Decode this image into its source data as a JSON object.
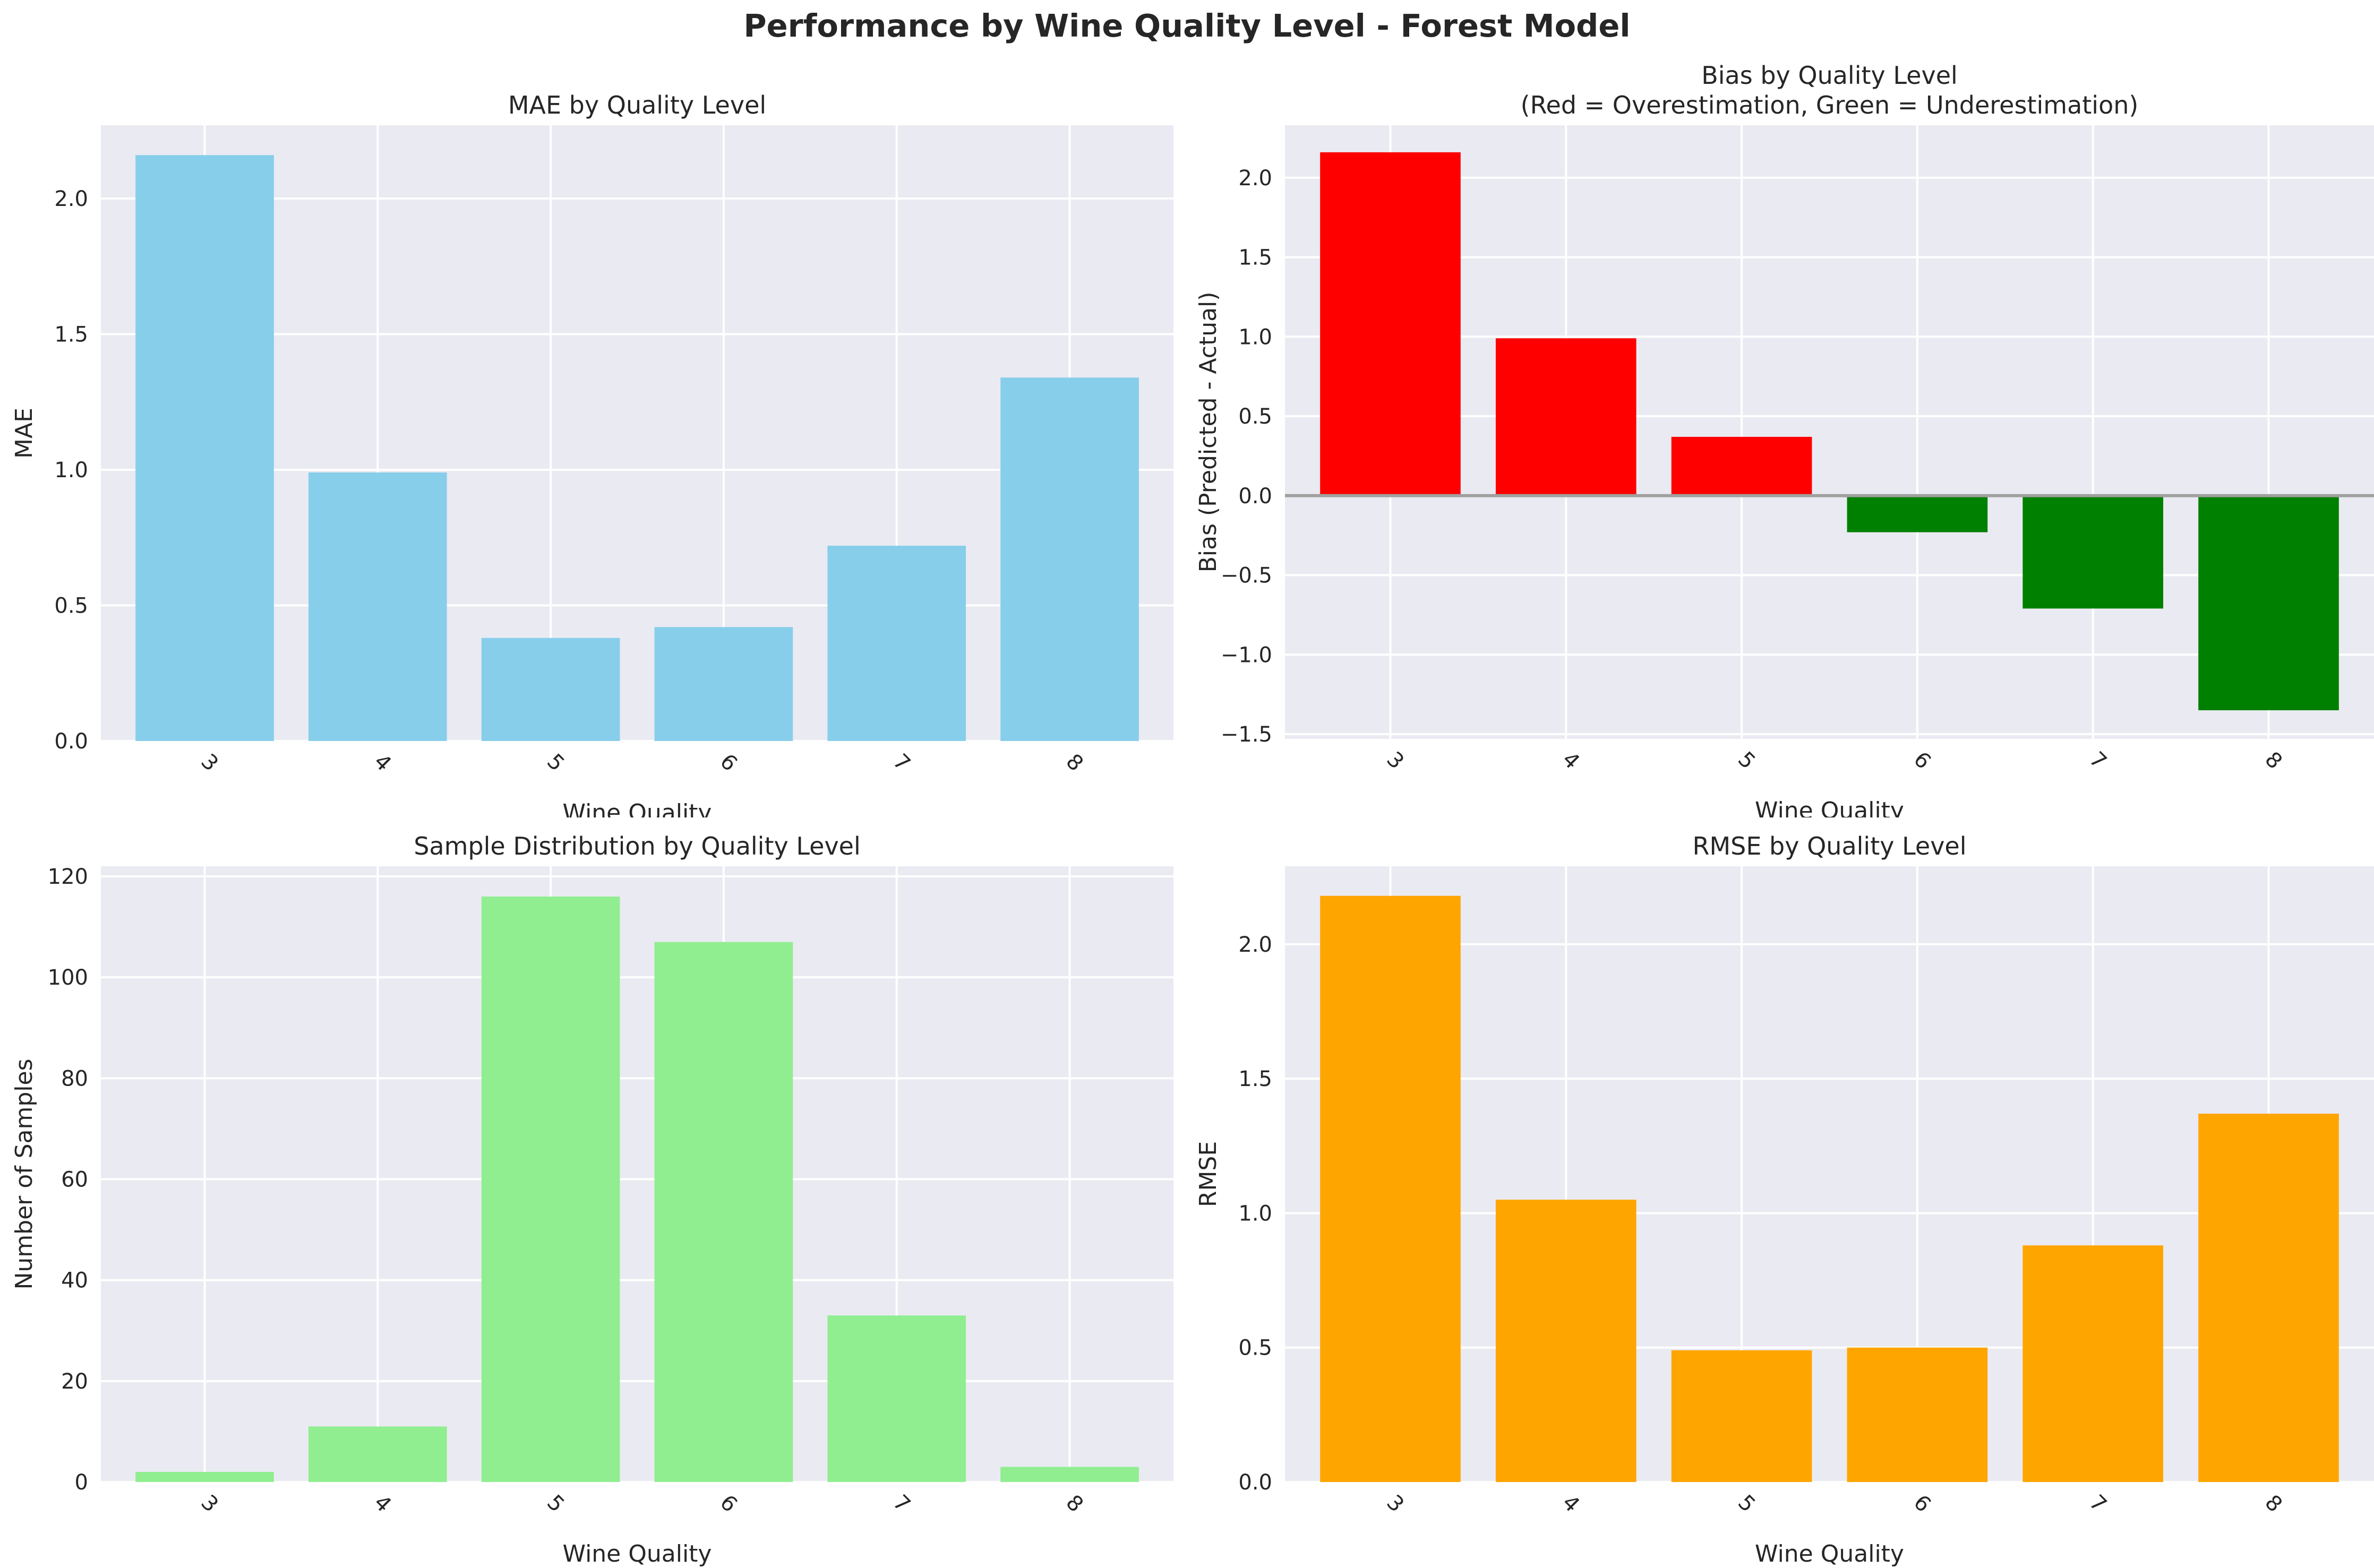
{
  "figure": {
    "title": "Performance by Wine Quality Level - Forest Model"
  },
  "colors": {
    "background": "#eaeaf2",
    "grid": "#ffffff",
    "mae": "#87ceeb",
    "overestimation": "#ff0000",
    "underestimation": "#008000",
    "samples": "#90ee90",
    "rmse": "#ffa500",
    "zero_line": "#a0a0a0"
  },
  "chart_data": [
    {
      "type": "bar",
      "title": "MAE by Quality Level",
      "xlabel": "Wine Quality",
      "ylabel": "MAE",
      "categories": [
        "3",
        "4",
        "5",
        "6",
        "7",
        "8"
      ],
      "values": [
        2.16,
        0.99,
        0.38,
        0.42,
        0.72,
        1.34
      ],
      "ylim": [
        0,
        2.27
      ],
      "yticks": [
        0.0,
        0.5,
        1.0,
        1.5,
        2.0
      ],
      "ytick_labels": [
        "0.0",
        "0.5",
        "1.0",
        "1.5",
        "2.0"
      ],
      "color": "#87ceeb",
      "grid": true
    },
    {
      "type": "bar",
      "title": "Bias by Quality Level\n(Red = Overestimation, Green = Underestimation)",
      "xlabel": "Wine Quality",
      "ylabel": "Bias (Predicted - Actual)",
      "categories": [
        "3",
        "4",
        "5",
        "6",
        "7",
        "8"
      ],
      "values": [
        2.16,
        0.99,
        0.37,
        -0.23,
        -0.71,
        -1.35
      ],
      "colors": [
        "#ff0000",
        "#ff0000",
        "#ff0000",
        "#008000",
        "#008000",
        "#008000"
      ],
      "ylim": [
        -1.53,
        2.33
      ],
      "yticks": [
        -1.5,
        -1.0,
        -0.5,
        0.0,
        0.5,
        1.0,
        1.5,
        2.0
      ],
      "ytick_labels": [
        "−1.5",
        "−1.0",
        "−0.5",
        "0.0",
        "0.5",
        "1.0",
        "1.5",
        "2.0"
      ],
      "zero_line": true,
      "grid": true
    },
    {
      "type": "bar",
      "title": "Sample Distribution by Quality Level",
      "xlabel": "Wine Quality",
      "ylabel": "Number of Samples",
      "categories": [
        "3",
        "4",
        "5",
        "6",
        "7",
        "8"
      ],
      "values": [
        2,
        11,
        116,
        107,
        33,
        3
      ],
      "ylim": [
        0,
        122
      ],
      "yticks": [
        0,
        20,
        40,
        60,
        80,
        100,
        120
      ],
      "ytick_labels": [
        "0",
        "20",
        "40",
        "60",
        "80",
        "100",
        "120"
      ],
      "color": "#90ee90",
      "grid": true
    },
    {
      "type": "bar",
      "title": "RMSE by Quality Level",
      "xlabel": "Wine Quality",
      "ylabel": "RMSE",
      "categories": [
        "3",
        "4",
        "5",
        "6",
        "7",
        "8"
      ],
      "values": [
        2.18,
        1.05,
        0.49,
        0.5,
        0.88,
        1.37
      ],
      "ylim": [
        0,
        2.29
      ],
      "yticks": [
        0.0,
        0.5,
        1.0,
        1.5,
        2.0
      ],
      "ytick_labels": [
        "0.0",
        "0.5",
        "1.0",
        "1.5",
        "2.0"
      ],
      "color": "#ffa500",
      "grid": true
    }
  ]
}
